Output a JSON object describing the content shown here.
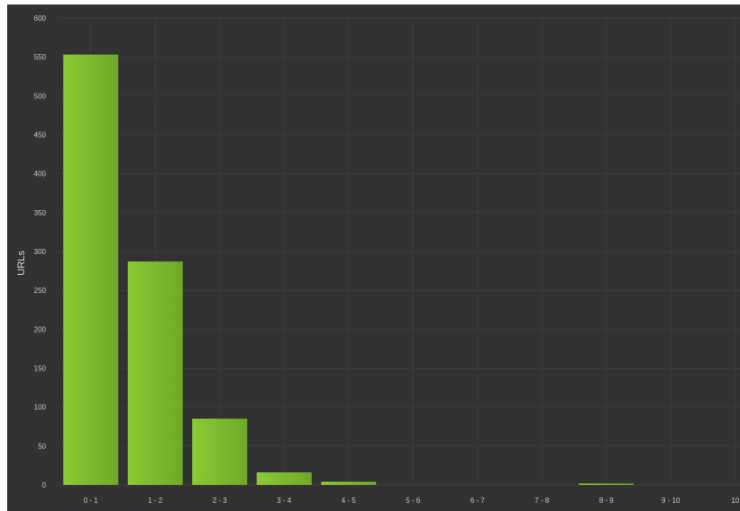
{
  "chart_data": {
    "type": "bar",
    "title": "",
    "xlabel": "",
    "ylabel": "URLs",
    "ylim": [
      0,
      600
    ],
    "yticks": [
      0,
      50,
      100,
      150,
      200,
      250,
      300,
      350,
      400,
      450,
      500,
      550,
      600
    ],
    "categories": [
      "0 - 1",
      "1 - 2",
      "2 - 3",
      "3 - 4",
      "4 - 5",
      "5 - 6",
      "6 - 7",
      "7 - 8",
      "8 - 9",
      "9 - 10",
      "10"
    ],
    "values": [
      553,
      287,
      85,
      16,
      4,
      0,
      0,
      0,
      1,
      0,
      0
    ],
    "grid": true,
    "colors": {
      "background": "#323232",
      "bar": "#79b52d",
      "bar_light": "#8ccb35",
      "grid": "#3d3d3d",
      "text": "#c8c8c8"
    }
  }
}
